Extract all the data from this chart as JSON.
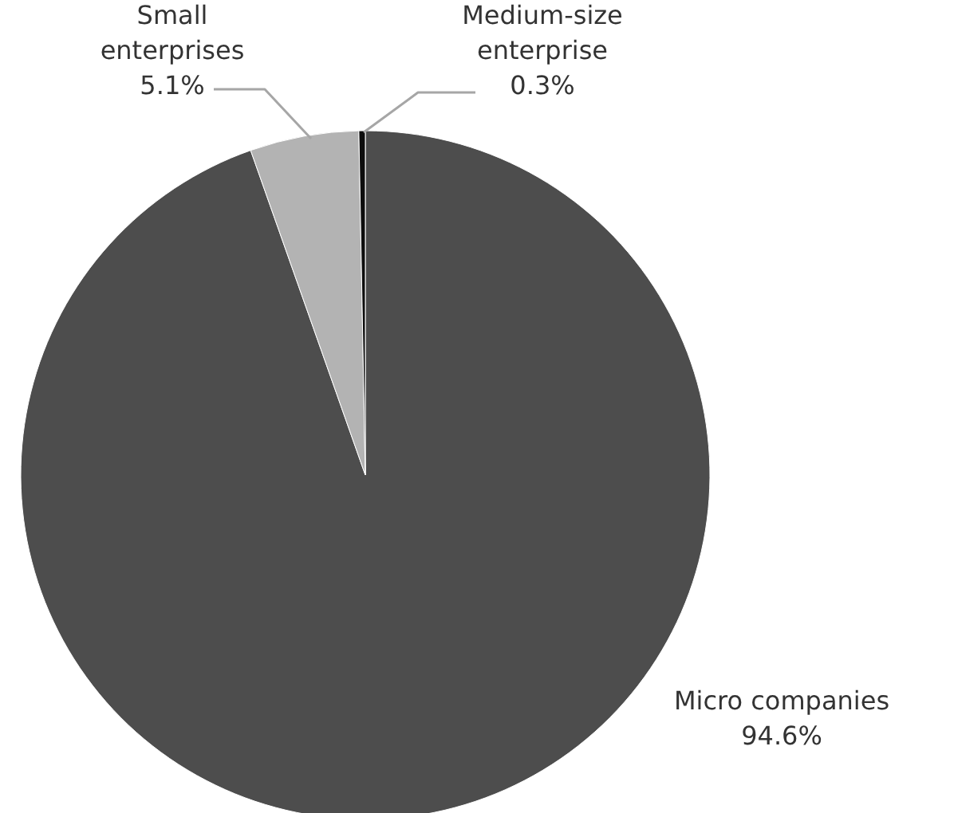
{
  "chart_data": {
    "type": "pie",
    "categories": [
      "Micro companies",
      "Small enterprises",
      "Medium-size enterprise"
    ],
    "values": [
      94.6,
      5.1,
      0.3
    ],
    "colors": [
      "#4d4d4d",
      "#b3b3b3",
      "#0d0d0d"
    ],
    "value_labels": [
      "94.6%",
      "5.1%",
      "0.3%"
    ]
  }
}
